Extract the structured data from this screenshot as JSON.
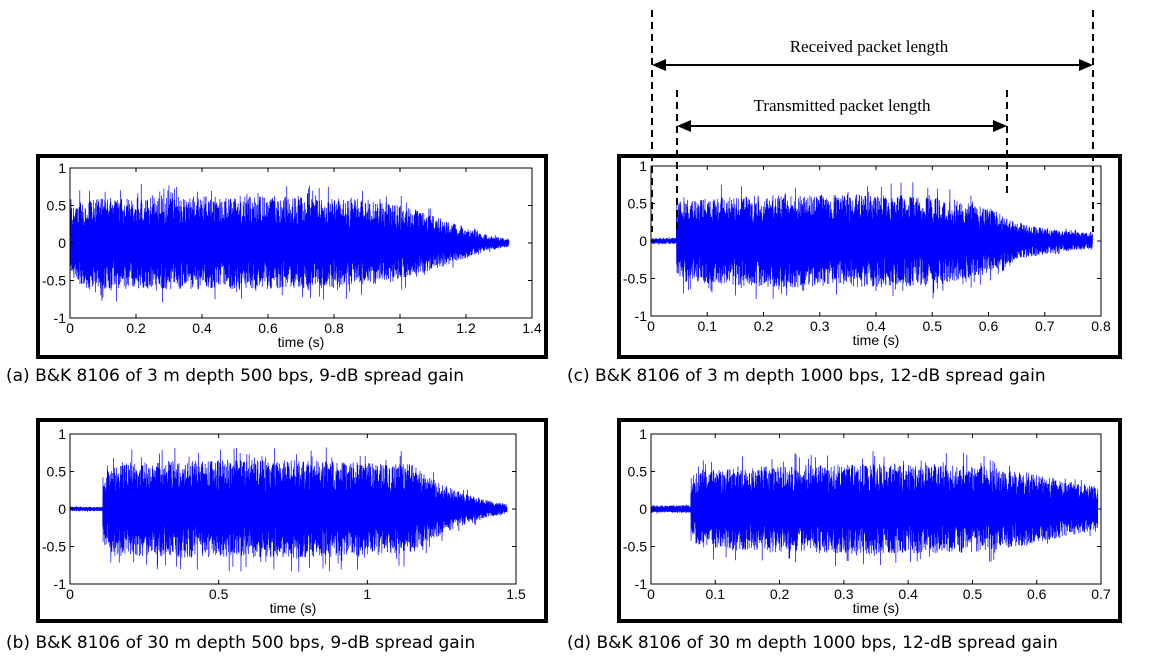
{
  "chart_data": [
    {
      "id": "a",
      "type": "line",
      "caption": "(a) B&K 8106 of 3 m depth 500 bps, 9-dB spread gain",
      "xlabel": "time (s)",
      "ylabel": "",
      "xlim": [
        0,
        1.4
      ],
      "ylim": [
        -1,
        1
      ],
      "xticks": [
        "0",
        "0.2",
        "0.4",
        "0.6",
        "0.8",
        "1",
        "1.2",
        "1.4"
      ],
      "xtick_values": [
        0,
        0.2,
        0.4,
        0.6,
        0.8,
        1.0,
        1.2,
        1.4
      ],
      "yticks": [
        "1",
        "0.5",
        "0",
        "-0.5",
        "-1"
      ],
      "ytick_values": [
        1,
        0.5,
        0,
        -0.5,
        -1
      ],
      "series": [
        {
          "color": "#0000ff",
          "signal_start": 0.0,
          "signal_end": 1.33,
          "duration": 1.33,
          "envelope_t": [
            0,
            0.05,
            0.3,
            0.6,
            0.8,
            0.95,
            1.05,
            1.15,
            1.25,
            1.33
          ],
          "envelope_amp": [
            0.45,
            0.6,
            0.62,
            0.63,
            0.6,
            0.55,
            0.45,
            0.28,
            0.12,
            0.05
          ],
          "noise_amp": 0.03
        }
      ]
    },
    {
      "id": "b",
      "type": "line",
      "caption": "(b) B&K 8106 of 30 m depth 500 bps, 9-dB spread gain",
      "xlabel": "time (s)",
      "ylabel": "",
      "xlim": [
        0,
        1.5
      ],
      "ylim": [
        -1,
        1
      ],
      "xticks": [
        "0",
        "0.5",
        "1",
        "1.5"
      ],
      "xtick_values": [
        0,
        0.5,
        1.0,
        1.5
      ],
      "yticks": [
        "1",
        "0.5",
        "0",
        "-0.5",
        "-1"
      ],
      "ytick_values": [
        1,
        0.5,
        0,
        -0.5,
        -1
      ],
      "series": [
        {
          "color": "#0000ff",
          "signal_start": 0.11,
          "signal_end": 1.47,
          "duration": 1.47,
          "envelope_t": [
            0.11,
            0.15,
            0.4,
            0.8,
            1.0,
            1.15,
            1.22,
            1.3,
            1.4,
            1.47
          ],
          "envelope_amp": [
            0.5,
            0.62,
            0.65,
            0.65,
            0.62,
            0.6,
            0.4,
            0.25,
            0.12,
            0.06
          ],
          "noise_amp": 0.03
        }
      ]
    },
    {
      "id": "c",
      "type": "line",
      "caption": "(c) B&K 8106 of 3 m depth 1000 bps, 12-dB spread gain",
      "xlabel": "time (s)",
      "ylabel": "",
      "xlim": [
        0,
        0.8
      ],
      "ylim": [
        -1,
        1
      ],
      "xticks": [
        "0",
        "0.1",
        "0.2",
        "0.3",
        "0.4",
        "0.5",
        "0.6",
        "0.7",
        "0.8"
      ],
      "xtick_values": [
        0,
        0.1,
        0.2,
        0.3,
        0.4,
        0.5,
        0.6,
        0.7,
        0.8
      ],
      "yticks": [
        "1",
        "0.5",
        "0",
        "-0.5",
        "-1"
      ],
      "ytick_values": [
        1,
        0.5,
        0,
        -0.5,
        -1
      ],
      "series": [
        {
          "color": "#0000ff",
          "signal_start": 0.045,
          "signal_end": 0.785,
          "duration": 0.785,
          "envelope_t": [
            0.045,
            0.06,
            0.2,
            0.35,
            0.5,
            0.6,
            0.65,
            0.72,
            0.785
          ],
          "envelope_amp": [
            0.5,
            0.55,
            0.62,
            0.62,
            0.6,
            0.45,
            0.25,
            0.15,
            0.1
          ],
          "noise_amp": 0.04
        }
      ],
      "annotations": {
        "received_label": "Received packet length",
        "transmitted_label": "Transmitted packet length"
      }
    },
    {
      "id": "d",
      "type": "line",
      "caption": "(d) B&K 8106 of 30 m depth 1000 bps, 12-dB spread gain",
      "xlabel": "time (s)",
      "ylabel": "",
      "xlim": [
        0,
        0.7
      ],
      "ylim": [
        -1,
        1
      ],
      "xticks": [
        "0",
        "0.1",
        "0.2",
        "0.3",
        "0.4",
        "0.5",
        "0.6",
        "0.7"
      ],
      "xtick_values": [
        0,
        0.1,
        0.2,
        0.3,
        0.4,
        0.5,
        0.6,
        0.7
      ],
      "yticks": [
        "1",
        "0.5",
        "0",
        "-0.5",
        "-1"
      ],
      "ytick_values": [
        1,
        0.5,
        0,
        -0.5,
        -1
      ],
      "series": [
        {
          "color": "#0000ff",
          "signal_start": 0.062,
          "signal_end": 0.695,
          "duration": 0.695,
          "envelope_t": [
            0.062,
            0.08,
            0.2,
            0.35,
            0.5,
            0.58,
            0.64,
            0.695
          ],
          "envelope_amp": [
            0.45,
            0.52,
            0.58,
            0.6,
            0.58,
            0.5,
            0.38,
            0.3
          ],
          "noise_amp": 0.05
        }
      ]
    }
  ]
}
